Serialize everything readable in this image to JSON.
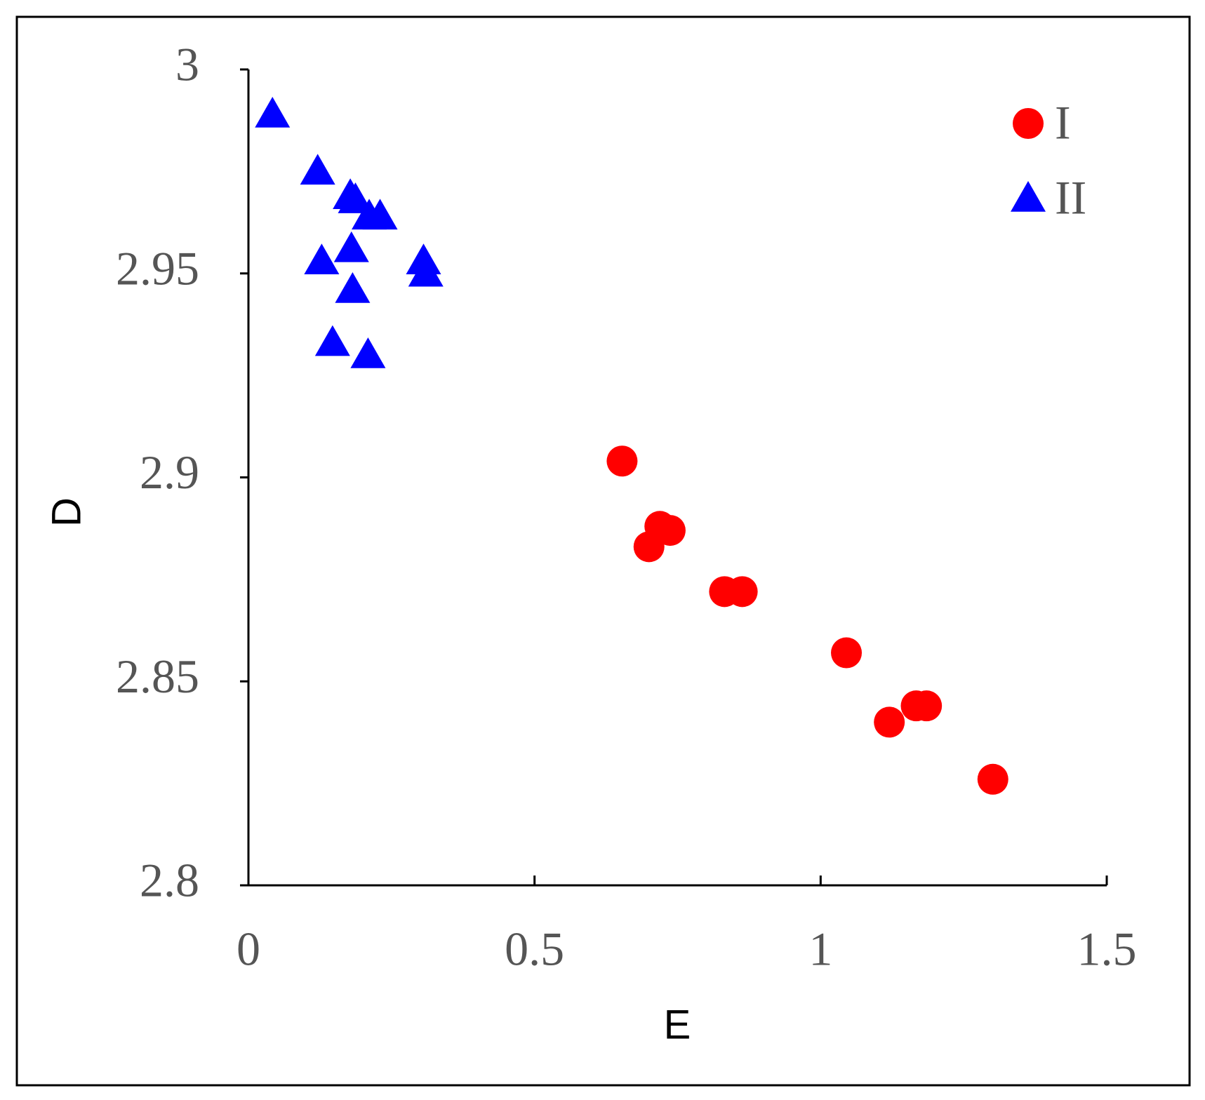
{
  "chart_data": {
    "type": "scatter",
    "x_label": "E",
    "y_label": "D",
    "xlim": [
      0,
      1.5
    ],
    "xticks": [
      0,
      0.5,
      1,
      1.5
    ],
    "ylim": [
      2.8,
      3
    ],
    "yticks": [
      {
        "value": 2.8,
        "label": "2.8"
      },
      2.85,
      {
        "value": 2.9,
        "label": "2.9"
      },
      2.95,
      3
    ],
    "legend": "upper right",
    "series": [
      {
        "name": "I",
        "color": "#ff0000",
        "marker": "circle",
        "x": [
          0.653,
          0.7,
          0.719,
          0.737,
          0.832,
          0.863,
          1.045,
          1.12,
          1.167,
          1.185,
          1.301
        ],
        "values": [
          2.904,
          2.883,
          2.888,
          2.887,
          2.872,
          2.872,
          2.857,
          2.84,
          2.844,
          2.844,
          2.826
        ]
      },
      {
        "name": "II",
        "color": "#0000ff",
        "marker": "triangle",
        "x": [
          0.042,
          0.121,
          0.178,
          0.187,
          0.211,
          0.23,
          0.18,
          0.128,
          0.182,
          0.147,
          0.209,
          0.306,
          0.31
        ],
        "values": [
          2.989,
          2.975,
          2.969,
          2.968,
          2.964,
          2.964,
          2.956,
          2.953,
          2.946,
          2.933,
          2.93,
          2.953,
          2.95
        ]
      }
    ]
  }
}
